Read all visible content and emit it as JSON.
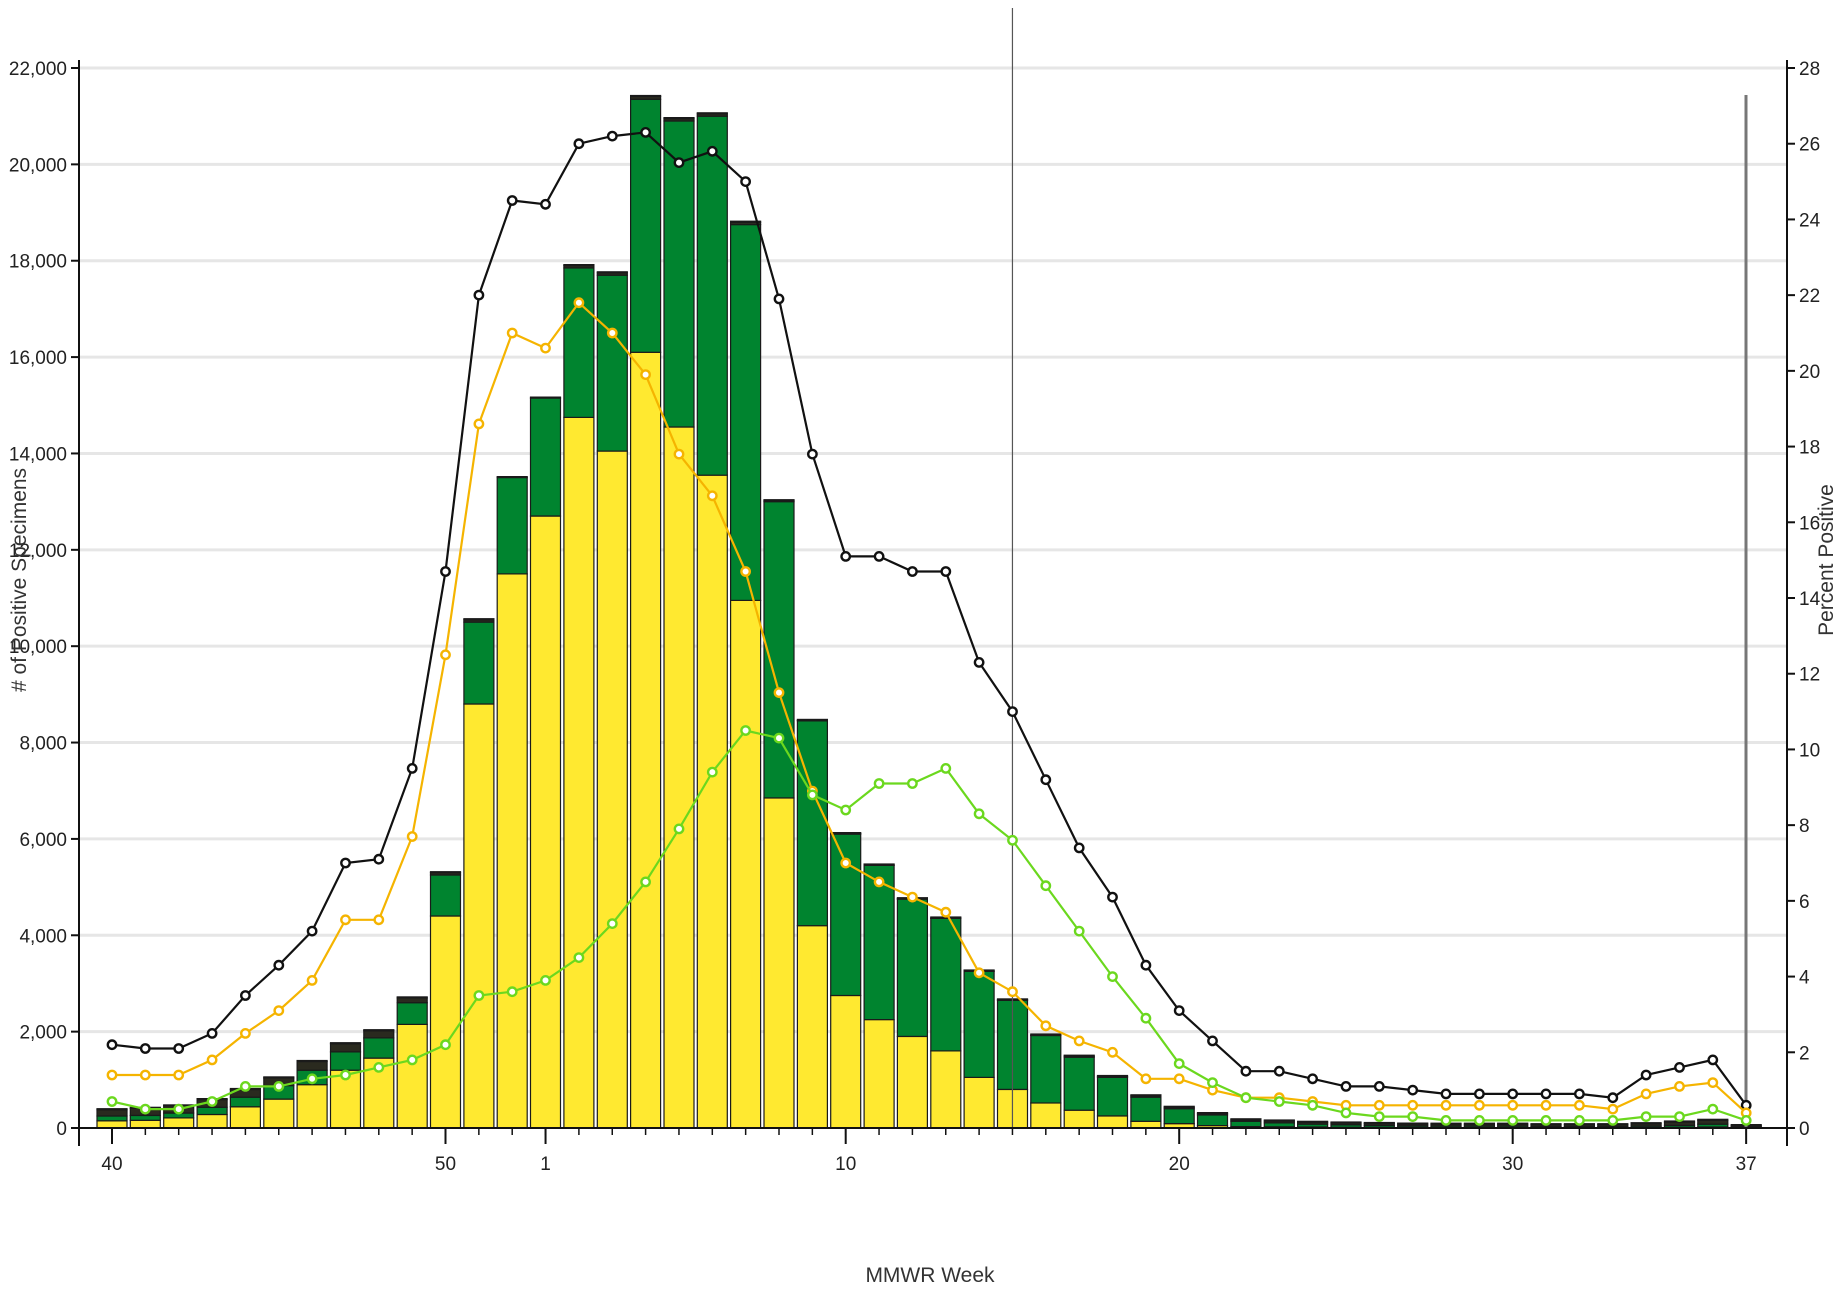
{
  "chart_data": {
    "type": "bar",
    "stacked": true,
    "xlabel": "MMWR Week",
    "ylabel_left": "# of Positive Specimens",
    "ylabel_right": "Percent Positive",
    "ylim_left": [
      0,
      22000
    ],
    "ylim_right": [
      0,
      28
    ],
    "left_ticks": [
      "0",
      "2,000",
      "4,000",
      "6,000",
      "8,000",
      "10,000",
      "12,000",
      "14,000",
      "16,000",
      "18,000",
      "20,000",
      "22,000"
    ],
    "right_ticks": [
      "0",
      "2",
      "4",
      "6",
      "8",
      "10",
      "12",
      "14",
      "16",
      "18",
      "20",
      "22",
      "24",
      "26",
      "28"
    ],
    "x_tick_labels": [
      {
        "index": 0,
        "label": "40"
      },
      {
        "index": 10,
        "label": "50"
      },
      {
        "index": 13,
        "label": "1"
      },
      {
        "index": 22,
        "label": "10"
      },
      {
        "index": 32,
        "label": "20"
      },
      {
        "index": 42,
        "label": "30"
      },
      {
        "index": 49,
        "label": "37"
      }
    ],
    "weeks": [
      "40",
      "41",
      "42",
      "43",
      "44",
      "45",
      "46",
      "47",
      "48",
      "49",
      "50",
      "51",
      "52",
      "1",
      "2",
      "3",
      "4",
      "5",
      "6",
      "7",
      "8",
      "9",
      "10",
      "11",
      "12",
      "13",
      "14",
      "15",
      "16",
      "17",
      "18",
      "19",
      "20",
      "21",
      "22",
      "23",
      "24",
      "25",
      "26",
      "27",
      "28",
      "29",
      "30",
      "31",
      "32",
      "33",
      "34",
      "35",
      "36",
      "37"
    ],
    "grid": true,
    "reference_line_week_index": 27,
    "colors": {
      "yellow_bar": "#ffe930",
      "green_bar": "#00842f",
      "dark_bar": "#2a2a1f",
      "gray_bar": "#8a8a8a",
      "black_line": "#111111",
      "orange_line": "#f5b400",
      "green_line": "#6bd81e",
      "grid": "#e6e6e6"
    },
    "series": [
      {
        "values": [
          150,
          160,
          210,
          280,
          440,
          600,
          900,
          1200,
          1450,
          2150,
          4400,
          8800,
          11500,
          12700,
          14750,
          14050,
          16100,
          14550,
          13550,
          10950,
          6850,
          4200,
          2750,
          2250,
          1900,
          1600,
          1050,
          800,
          520,
          370,
          250,
          140,
          90,
          50,
          30,
          25,
          20,
          15,
          15,
          12,
          10,
          10,
          10,
          10,
          10,
          10,
          10,
          15,
          20,
          10
        ]
      },
      {
        "values": [
          100,
          100,
          100,
          150,
          200,
          280,
          300,
          380,
          420,
          450,
          850,
          1700,
          2000,
          2450,
          3100,
          3650,
          5250,
          6350,
          7450,
          7800,
          6150,
          4250,
          3350,
          3200,
          2850,
          2750,
          2200,
          1850,
          1400,
          1100,
          800,
          500,
          310,
          220,
          110,
          80,
          60,
          50,
          40,
          30,
          30,
          30,
          30,
          20,
          20,
          20,
          30,
          40,
          60,
          20
        ]
      },
      {
        "values": [
          130,
          150,
          150,
          160,
          160,
          160,
          180,
          170,
          150,
          100,
          50,
          50,
          0,
          0,
          50,
          50,
          60,
          50,
          50,
          50,
          20,
          10,
          10,
          10,
          10,
          10,
          10,
          10,
          10,
          20,
          20,
          30,
          30,
          30,
          30,
          40,
          40,
          40,
          40,
          40,
          40,
          40,
          40,
          40,
          40,
          40,
          50,
          70,
          80,
          20
        ]
      },
      {
        "values": [
          20,
          20,
          20,
          20,
          20,
          20,
          20,
          20,
          20,
          20,
          20,
          20,
          20,
          20,
          20,
          20,
          20,
          20,
          20,
          20,
          20,
          20,
          20,
          20,
          20,
          20,
          20,
          20,
          20,
          20,
          20,
          20,
          20,
          20,
          20,
          20,
          20,
          20,
          20,
          20,
          20,
          20,
          20,
          20,
          20,
          20,
          20,
          20,
          20,
          20
        ]
      },
      {
        "values": [
          2.2,
          2.1,
          2.1,
          2.5,
          3.5,
          4.3,
          5.2,
          7.0,
          7.1,
          9.5,
          14.7,
          22.0,
          24.5,
          24.4,
          26.0,
          26.2,
          26.3,
          25.5,
          25.8,
          25.0,
          21.9,
          17.8,
          15.1,
          15.1,
          14.7,
          14.7,
          12.3,
          11.0,
          9.2,
          7.4,
          6.1,
          4.3,
          3.1,
          2.3,
          1.5,
          1.5,
          1.3,
          1.1,
          1.1,
          1.0,
          0.9,
          0.9,
          0.9,
          0.9,
          0.9,
          0.8,
          1.4,
          1.6,
          1.8,
          0.6
        ]
      },
      {
        "values": [
          1.4,
          1.4,
          1.4,
          1.8,
          2.5,
          3.1,
          3.9,
          5.5,
          5.5,
          7.7,
          12.5,
          18.6,
          21.0,
          20.6,
          21.8,
          21.0,
          19.9,
          17.8,
          16.7,
          14.7,
          11.5,
          8.9,
          7.0,
          6.5,
          6.1,
          5.7,
          4.1,
          3.6,
          2.7,
          2.3,
          2.0,
          1.3,
          1.3,
          1.0,
          0.8,
          0.8,
          0.7,
          0.6,
          0.6,
          0.6,
          0.6,
          0.6,
          0.6,
          0.6,
          0.6,
          0.5,
          0.9,
          1.1,
          1.2,
          0.4
        ]
      },
      {
        "values": [
          0.7,
          0.5,
          0.5,
          0.7,
          1.1,
          1.1,
          1.3,
          1.4,
          1.6,
          1.8,
          2.2,
          3.5,
          3.6,
          3.9,
          4.5,
          5.4,
          6.5,
          7.9,
          9.4,
          10.5,
          10.3,
          8.8,
          8.4,
          9.1,
          9.1,
          9.5,
          8.3,
          7.6,
          6.4,
          5.2,
          4.0,
          2.9,
          1.7,
          1.2,
          0.8,
          0.7,
          0.6,
          0.4,
          0.3,
          0.3,
          0.2,
          0.2,
          0.2,
          0.2,
          0.2,
          0.2,
          0.3,
          0.3,
          0.5,
          0.2
        ]
      }
    ]
  }
}
